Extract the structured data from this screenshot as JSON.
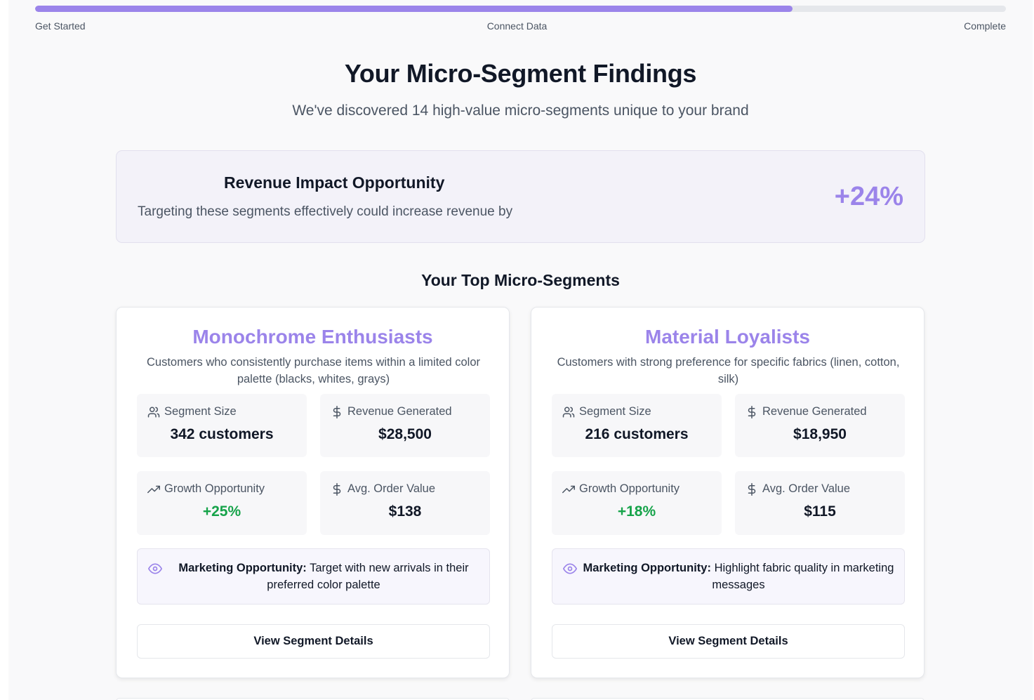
{
  "progress": {
    "steps": [
      "Get Started",
      "Connect Data",
      "Complete"
    ],
    "percent": 78
  },
  "header": {
    "title": "Your Micro-Segment Findings",
    "subtitle": "We've discovered 14 high-value micro-segments unique to your brand"
  },
  "impact": {
    "title": "Revenue Impact Opportunity",
    "text": "Targeting these segments effectively could increase revenue by",
    "value": "+24%"
  },
  "section_title": "Your Top Micro-Segments",
  "segments": [
    {
      "name": "Monochrome Enthusiasts",
      "description": "Customers who consistently purchase items within a limited color palette (blacks, whites, grays)",
      "size_label": "Segment Size",
      "size_value": "342 customers",
      "revenue_label": "Revenue Generated",
      "revenue_value": "$28,500",
      "growth_label": "Growth Opportunity",
      "growth_value": "+25%",
      "aov_label": "Avg. Order Value",
      "aov_value": "$138",
      "marketing_label": "Marketing Opportunity:",
      "marketing_text": "Target with new arrivals in their preferred color palette",
      "button_label": "View Segment Details"
    },
    {
      "name": "Material Loyalists",
      "description": "Customers with strong preference for specific fabrics (linen, cotton, silk)",
      "size_label": "Segment Size",
      "size_value": "216 customers",
      "revenue_label": "Revenue Generated",
      "revenue_value": "$18,950",
      "growth_label": "Growth Opportunity",
      "growth_value": "+18%",
      "aov_label": "Avg. Order Value",
      "aov_value": "$115",
      "marketing_label": "Marketing Opportunity:",
      "marketing_text": "Highlight fabric quality in marketing messages",
      "button_label": "View Segment Details"
    }
  ],
  "colors": {
    "accent": "#9b84ea",
    "growth": "#16a34a"
  },
  "icons": [
    "users-icon",
    "dollar-icon",
    "trending-up-icon",
    "eye-icon"
  ]
}
